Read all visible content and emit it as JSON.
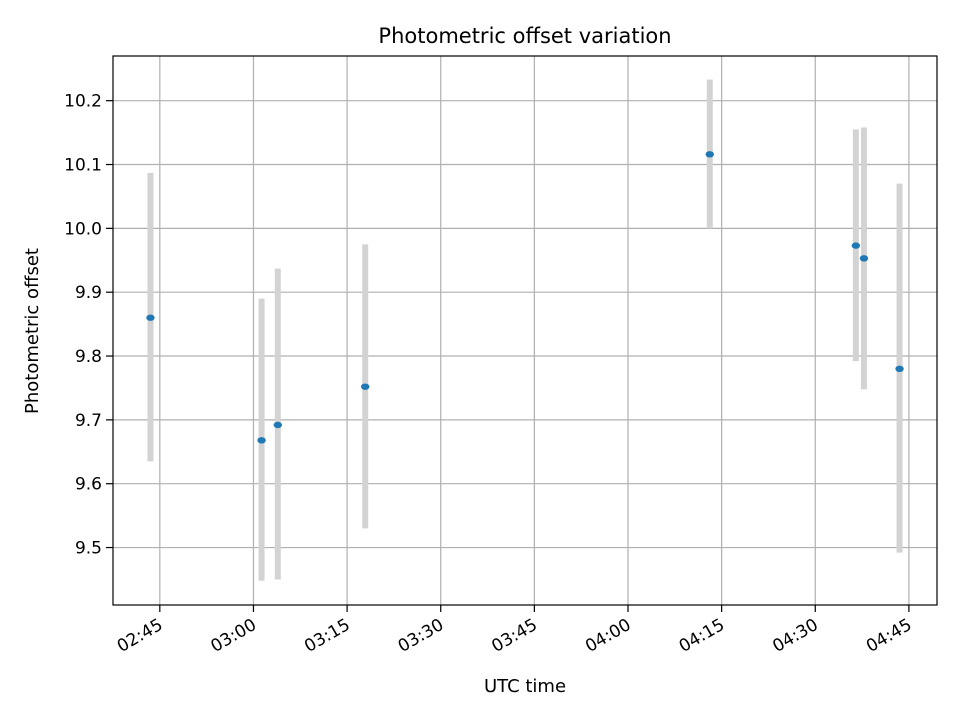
{
  "chart_data": {
    "type": "scatter",
    "title": "Photometric offset variation",
    "xlabel": "UTC time",
    "ylabel": "Photometric offset",
    "x_unit": "UTC HH:MM",
    "xlim": [
      "02:37.5",
      "04:49.5"
    ],
    "ylim": [
      9.41,
      10.27
    ],
    "grid": true,
    "x_ticks": [
      "02:45",
      "03:00",
      "03:15",
      "03:30",
      "03:45",
      "04:00",
      "04:15",
      "04:30",
      "04:45"
    ],
    "y_ticks": [
      "9.5",
      "9.6",
      "9.7",
      "9.8",
      "9.9",
      "10.0",
      "10.1",
      "10.2"
    ],
    "series": [
      {
        "marker_color": "#1f77b4",
        "errorbar_color": "#d3d3d3",
        "points": [
          {
            "x": "02:43.5",
            "y": 9.86,
            "ymin": 9.635,
            "ymax": 10.087
          },
          {
            "x": "03:01.3",
            "y": 9.668,
            "ymin": 9.448,
            "ymax": 9.89
          },
          {
            "x": "03:03.9",
            "y": 9.692,
            "ymin": 9.45,
            "ymax": 9.937
          },
          {
            "x": "03:17.9",
            "y": 9.752,
            "ymin": 9.53,
            "ymax": 9.975
          },
          {
            "x": "04:13.1",
            "y": 10.116,
            "ymin": 10.0,
            "ymax": 10.233
          },
          {
            "x": "04:36.5",
            "y": 9.973,
            "ymin": 9.792,
            "ymax": 10.155
          },
          {
            "x": "04:37.8",
            "y": 9.953,
            "ymin": 9.748,
            "ymax": 10.158
          },
          {
            "x": "04:43.5",
            "y": 9.78,
            "ymin": 9.492,
            "ymax": 10.07
          }
        ]
      }
    ]
  }
}
